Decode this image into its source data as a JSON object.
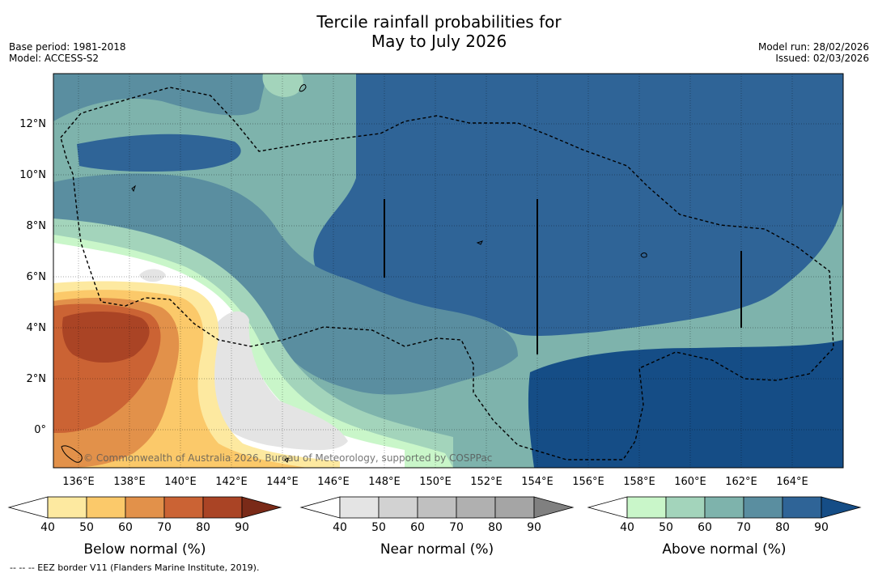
{
  "header": {
    "title_line1": "Tercile rainfall probabilities for",
    "title_line2": "May to July 2026",
    "base_period": "Base period: 1981-2018",
    "model": "Model: ACCESS-S2",
    "model_run": "Model run: 28/02/2026",
    "issued": "Issued: 02/03/2026"
  },
  "map": {
    "copyright": "© Commonwealth of Australia 2026, Bureau of Meteorology, supported by COSPPac",
    "y_ticks": [
      "12°N",
      "10°N",
      "8°N",
      "6°N",
      "4°N",
      "2°N",
      "0°"
    ],
    "x_ticks": [
      "136°E",
      "138°E",
      "140°E",
      "142°E",
      "144°E",
      "146°E",
      "148°E",
      "150°E",
      "152°E",
      "154°E",
      "156°E",
      "158°E",
      "160°E",
      "162°E",
      "164°E"
    ],
    "colors": {
      "ocean_base": "#3f769b",
      "below": [
        "#fde9a0",
        "#fbc96a",
        "#e2914a",
        "#cb6334",
        "#aa4425",
        "#7a2a18"
      ],
      "near": [
        "#ffffff",
        "#e4e4e4",
        "#d2d2d2",
        "#c0c0c0",
        "#a5a5a5",
        "#808080"
      ],
      "above": [
        "#ffffff",
        "#c9f6c9",
        "#a3d4bb",
        "#7eb3ac",
        "#5a8ea0",
        "#2f6497",
        "#154d86"
      ]
    }
  },
  "colorbars": {
    "ticks": [
      "40",
      "50",
      "60",
      "70",
      "80",
      "90"
    ],
    "below_title": "Below normal (%)",
    "near_title": "Near normal (%)",
    "above_title": "Above normal (%)"
  },
  "footnote": "--  --  -- EEZ border V11 (Flanders Marine Institute, 2019)."
}
